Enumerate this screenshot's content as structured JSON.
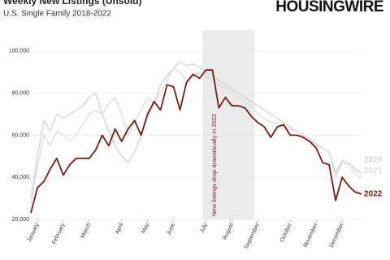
{
  "chart_data": {
    "type": "line",
    "title": "Weekly New Listings (Unsold)",
    "subtitle": "U.S. Single Family 2018-2022",
    "brand": "HOUSINGWIRE",
    "annotation": "New listings drop dramatically in 2022",
    "categories": [
      null,
      "January",
      null,
      null,
      null,
      "February",
      null,
      null,
      null,
      "March",
      null,
      null,
      null,
      null,
      "April",
      null,
      null,
      null,
      "May",
      null,
      null,
      null,
      "June",
      null,
      null,
      null,
      null,
      "July",
      null,
      null,
      null,
      "August",
      null,
      null,
      null,
      "September",
      null,
      null,
      null,
      null,
      "October",
      null,
      null,
      null,
      "November",
      null,
      null,
      null,
      "December",
      null,
      null,
      null
    ],
    "ylim": [
      20000,
      110000
    ],
    "yticks": [
      {
        "value": 20000,
        "label": "20,000"
      },
      {
        "value": 40000,
        "label": "40,000"
      },
      {
        "value": 60000,
        "label": "60,000"
      },
      {
        "value": 80000,
        "label": "80,000"
      },
      {
        "value": 100000,
        "label": "100,000"
      }
    ],
    "grid": true,
    "series": [
      {
        "name": "2020",
        "color": "#d4d4d4",
        "values": [
          30000,
          50000,
          67000,
          62000,
          70000,
          68000,
          70000,
          72000,
          74000,
          78000,
          80000,
          70000,
          62000,
          55000,
          50000,
          47000,
          52000,
          60000,
          68000,
          75000,
          84000,
          88000,
          92000,
          95000,
          93000,
          94000,
          92000,
          90000,
          88000,
          86000,
          84000,
          82000,
          80000,
          78000,
          76000,
          74000,
          72000,
          70000,
          68000,
          66000,
          64000,
          62000,
          60000,
          58000,
          56000,
          54000,
          52000,
          42000,
          48000,
          47000,
          44000,
          42000
        ]
      },
      {
        "name": "2021",
        "color": "#dcdcdc",
        "values": [
          27000,
          45000,
          60000,
          55000,
          62000,
          60000,
          57000,
          60000,
          65000,
          70000,
          72000,
          70000,
          75000,
          78000,
          70000,
          60000,
          66000,
          72000,
          78000,
          75000,
          80000,
          86000,
          92000,
          90000,
          86000,
          88000,
          90000,
          88000,
          86000,
          84000,
          82000,
          80000,
          78000,
          76000,
          74000,
          70000,
          68000,
          66000,
          66000,
          64000,
          63000,
          62000,
          60000,
          58000,
          55000,
          54000,
          52000,
          40000,
          47000,
          46000,
          42000,
          40000
        ]
      },
      {
        "name": "2022",
        "color": "#7b1a12",
        "values": [
          23000,
          35000,
          38000,
          44000,
          49000,
          41000,
          46000,
          49000,
          49000,
          49000,
          53000,
          60000,
          55000,
          63000,
          57000,
          63000,
          67000,
          60000,
          70000,
          76000,
          72000,
          84000,
          83000,
          72000,
          85000,
          89000,
          87000,
          91000,
          91000,
          73000,
          78000,
          74000,
          74000,
          73000,
          69000,
          66000,
          64000,
          59000,
          64000,
          65000,
          60000,
          60000,
          59000,
          57000,
          54000,
          47000,
          46000,
          29000,
          40000,
          36000,
          33000,
          32000
        ]
      }
    ]
  }
}
